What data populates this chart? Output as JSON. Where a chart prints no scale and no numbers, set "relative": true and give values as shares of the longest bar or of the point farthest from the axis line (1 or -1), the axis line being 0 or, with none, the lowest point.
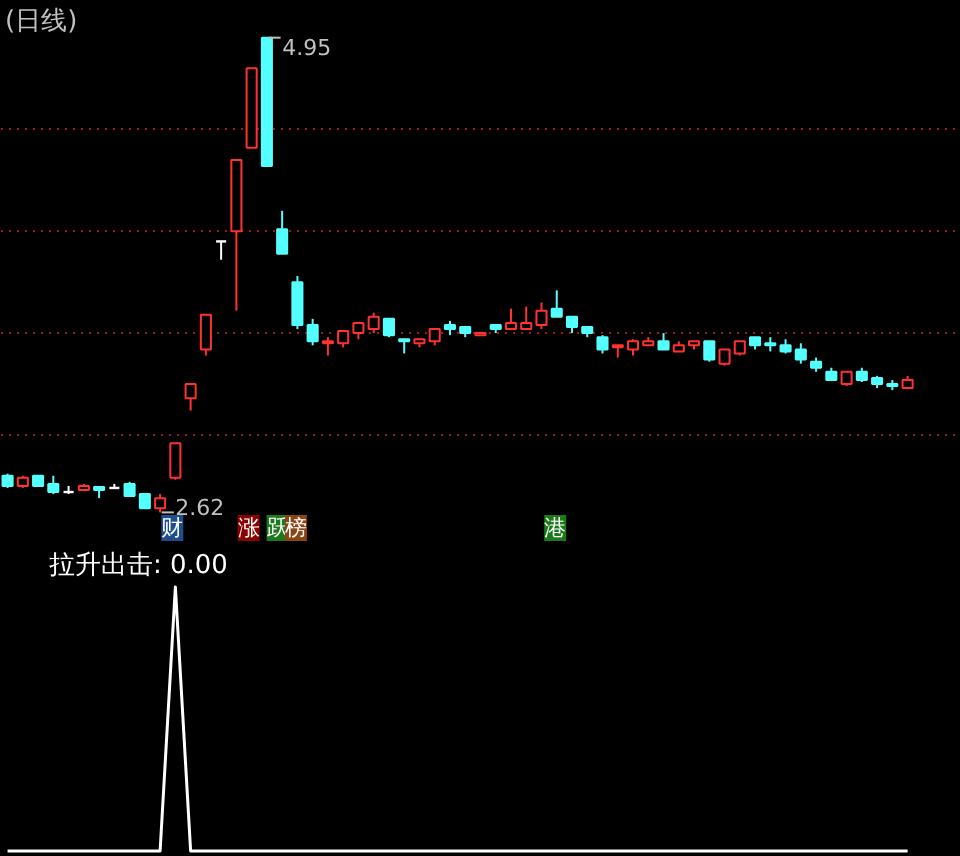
{
  "chart_data": [
    {
      "type": "candlestick",
      "title": "(日线)",
      "categories": [
        null,
        null,
        null,
        null,
        null,
        null,
        null,
        null,
        null,
        null,
        null,
        null,
        null,
        null,
        null,
        null,
        null,
        null,
        null,
        null,
        null,
        null,
        null,
        null,
        null,
        null,
        null,
        null,
        null,
        null,
        null,
        null,
        null,
        null,
        null,
        null,
        null,
        null,
        null,
        null,
        null,
        null,
        null,
        null,
        null,
        null,
        null,
        null,
        null,
        null,
        null,
        null,
        null,
        null,
        null,
        null,
        null,
        null,
        null,
        null
      ],
      "ohlc": [
        [
          2.8,
          2.81,
          2.74,
          2.75
        ],
        [
          2.75,
          2.8,
          2.74,
          2.79
        ],
        [
          2.8,
          2.8,
          2.75,
          2.75
        ],
        [
          2.76,
          2.8,
          2.71,
          2.72
        ],
        [
          2.72,
          2.75,
          2.71,
          2.72
        ],
        [
          2.73,
          2.76,
          2.73,
          2.75
        ],
        [
          2.745,
          2.745,
          2.69,
          2.73
        ],
        [
          2.74,
          2.76,
          2.74,
          2.74
        ],
        [
          2.76,
          2.77,
          2.7,
          2.7
        ],
        [
          2.71,
          2.71,
          2.64,
          2.64
        ],
        [
          2.64,
          2.71,
          2.62,
          2.69
        ],
        [
          2.79,
          2.96,
          2.78,
          2.96
        ],
        [
          3.18,
          3.25,
          3.12,
          3.25
        ],
        [
          3.42,
          3.59,
          3.39,
          3.59
        ],
        [
          3.95,
          3.95,
          3.86,
          3.95
        ],
        [
          4.0,
          4.35,
          3.61,
          4.35
        ],
        [
          4.41,
          4.8,
          4.41,
          4.8
        ],
        [
          4.95,
          4.95,
          4.32,
          4.32
        ],
        [
          4.01,
          4.1,
          3.89,
          3.89
        ],
        [
          3.75,
          3.78,
          3.52,
          3.54
        ],
        [
          3.54,
          3.57,
          3.44,
          3.46
        ],
        [
          3.45,
          3.48,
          3.39,
          3.46
        ],
        [
          3.45,
          3.51,
          3.43,
          3.51
        ],
        [
          3.5,
          3.55,
          3.47,
          3.55
        ],
        [
          3.52,
          3.6,
          3.5,
          3.58
        ],
        [
          3.57,
          3.57,
          3.48,
          3.49
        ],
        [
          3.47,
          3.47,
          3.4,
          3.46
        ],
        [
          3.45,
          3.47,
          3.43,
          3.47
        ],
        [
          3.46,
          3.52,
          3.44,
          3.52
        ],
        [
          3.54,
          3.56,
          3.49,
          3.52
        ],
        [
          3.53,
          3.53,
          3.48,
          3.5
        ],
        [
          3.49,
          3.5,
          3.49,
          3.5
        ],
        [
          3.54,
          3.54,
          3.5,
          3.52
        ],
        [
          3.52,
          3.62,
          3.52,
          3.55
        ],
        [
          3.52,
          3.63,
          3.52,
          3.55
        ],
        [
          3.54,
          3.65,
          3.52,
          3.61
        ],
        [
          3.62,
          3.71,
          3.58,
          3.58
        ],
        [
          3.58,
          3.58,
          3.5,
          3.53
        ],
        [
          3.53,
          3.53,
          3.48,
          3.5
        ],
        [
          3.48,
          3.49,
          3.4,
          3.42
        ],
        [
          3.43,
          3.44,
          3.38,
          3.44
        ],
        [
          3.42,
          3.47,
          3.39,
          3.46
        ],
        [
          3.44,
          3.48,
          3.44,
          3.46
        ],
        [
          3.46,
          3.5,
          3.42,
          3.42
        ],
        [
          3.41,
          3.46,
          3.41,
          3.44
        ],
        [
          3.44,
          3.46,
          3.42,
          3.46
        ],
        [
          3.46,
          3.46,
          3.36,
          3.37
        ],
        [
          3.35,
          3.42,
          3.34,
          3.42
        ],
        [
          3.4,
          3.46,
          3.39,
          3.46
        ],
        [
          3.48,
          3.48,
          3.42,
          3.44
        ],
        [
          3.45,
          3.48,
          3.41,
          3.44
        ],
        [
          3.44,
          3.47,
          3.4,
          3.41
        ],
        [
          3.42,
          3.45,
          3.35,
          3.37
        ],
        [
          3.36,
          3.38,
          3.31,
          3.33
        ],
        [
          3.31,
          3.33,
          3.27,
          3.27
        ],
        [
          3.25,
          3.31,
          3.24,
          3.31
        ],
        [
          3.31,
          3.33,
          3.26,
          3.27
        ],
        [
          3.28,
          3.29,
          3.23,
          3.25
        ],
        [
          3.25,
          3.27,
          3.22,
          3.24
        ],
        [
          3.23,
          3.29,
          3.23,
          3.27
        ]
      ],
      "colors": [
        "#54ffff",
        "#ff3232",
        "#54ffff",
        "#54ffff",
        "#ffffff",
        "#ff3232",
        "#54ffff",
        "#ffffff",
        "#54ffff",
        "#54ffff",
        "#ff3232",
        "#ff3232",
        "#ff3232",
        "#ff3232",
        "#ffffff",
        "#ff3232",
        "#ff3232",
        "#54ffff",
        "#54ffff",
        "#54ffff",
        "#54ffff",
        "#ff3232",
        "#ff3232",
        "#ff3232",
        "#ff3232",
        "#54ffff",
        "#54ffff",
        "#ff3232",
        "#ff3232",
        "#54ffff",
        "#54ffff",
        "#ff3232",
        "#54ffff",
        "#ff3232",
        "#ff3232",
        "#ff3232",
        "#54ffff",
        "#54ffff",
        "#54ffff",
        "#54ffff",
        "#ff3232",
        "#ff3232",
        "#ff3232",
        "#54ffff",
        "#ff3232",
        "#ff3232",
        "#54ffff",
        "#ff3232",
        "#ff3232",
        "#54ffff",
        "#54ffff",
        "#54ffff",
        "#54ffff",
        "#54ffff",
        "#54ffff",
        "#ff3232",
        "#54ffff",
        "#54ffff",
        "#54ffff",
        "#ff3232"
      ],
      "ylim": [
        2.46,
        5.13
      ],
      "yticks": [
        {
          "value": 3.0,
          "label": null
        },
        {
          "value": 3.5,
          "label": null
        },
        {
          "value": 4.0,
          "label": null
        },
        {
          "value": 4.5,
          "label": null
        }
      ],
      "grid": "y",
      "tick_labels": false,
      "annotations": [
        "4.95",
        "2.62",
        "财",
        "涨",
        "跃",
        "榜",
        "港"
      ]
    },
    {
      "type": "line",
      "title": "拉升出击: 0.00",
      "relative": true,
      "categories": [
        null,
        null,
        null,
        null,
        null,
        null,
        null,
        null,
        null,
        null,
        null,
        null,
        null,
        null,
        null,
        null,
        null,
        null,
        null,
        null,
        null,
        null,
        null,
        null,
        null,
        null,
        null,
        null,
        null,
        null,
        null,
        null,
        null,
        null,
        null,
        null,
        null,
        null,
        null,
        null,
        null,
        null,
        null,
        null,
        null,
        null,
        null,
        null,
        null,
        null,
        null,
        null,
        null,
        null,
        null,
        null,
        null,
        null,
        null,
        null
      ],
      "series": [
        {
          "color": "#ffffff",
          "values": [
            0,
            0,
            0,
            0,
            0,
            0,
            0,
            0,
            0,
            0,
            0,
            1,
            0,
            0,
            0,
            0,
            0,
            0,
            0,
            0,
            0,
            0,
            0,
            0,
            0,
            0,
            0,
            0,
            0,
            0,
            0,
            0,
            0,
            0,
            0,
            0,
            0,
            0,
            0,
            0,
            0,
            0,
            0,
            0,
            0,
            0,
            0,
            0,
            0,
            0,
            0,
            0,
            0,
            0,
            0,
            0,
            0,
            0,
            0,
            0
          ]
        }
      ]
    }
  ]
}
